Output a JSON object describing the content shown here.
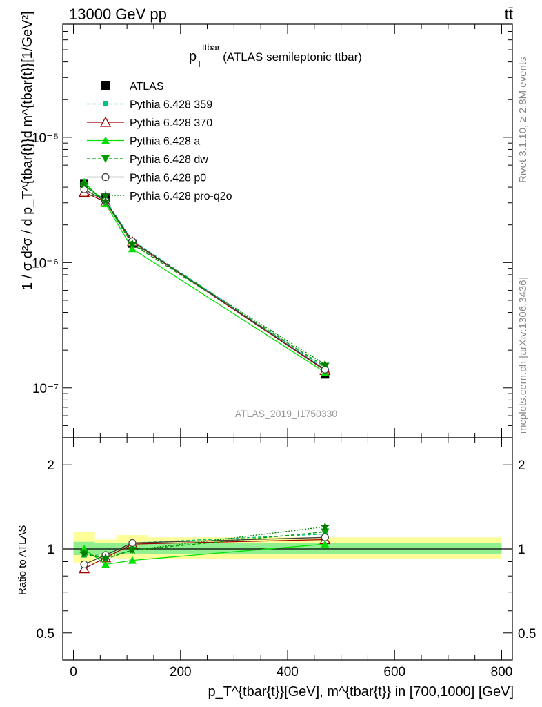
{
  "header": {
    "left": "13000 GeV pp",
    "right": "tt̄"
  },
  "side_labels": {
    "rivet": "Rivet 3.1.10, ≥ 2.8M events",
    "mcplots": "mcplots.cern.ch [arXiv:1306.3436]"
  },
  "colors": {
    "ATLAS": "#000000",
    "Pythia 6.428 359": "#00c080",
    "Pythia 6.428 370": "#a00000",
    "Pythia 6.428 a": "#00e000",
    "Pythia 6.428 dw": "#00a000",
    "Pythia 6.428 p0": "#404040",
    "Pythia 6.428 pro-q2o": "#008000",
    "band_inner": "#90f090",
    "band_outer": "#ffff99"
  },
  "chart_data": [
    {
      "type": "line",
      "title": "p_T^ttbar (ATLAS semileptonic ttbar)",
      "title_main": "p",
      "title_sub": "T",
      "title_sup": "ttbar",
      "title_rest": "(ATLAS semileptonic ttbar)",
      "analysis_id": "ATLAS_2019_I1750330",
      "ylabel": "1 / σ d²σ / d p_T^{tbar{t}}d m^{tbar{t}}[1/GeV²]",
      "yscale": "log",
      "ylim": [
        4e-08,
        8e-05
      ],
      "xlim": [
        -20,
        820
      ],
      "ytick_labels": [
        "10⁻⁷",
        "10⁻⁶",
        "10⁻⁵"
      ],
      "ytick_values": [
        1e-07,
        1e-06,
        1e-05
      ],
      "legend_position": "top-left",
      "x": [
        20,
        60,
        110,
        470
      ],
      "series": [
        {
          "name": "ATLAS",
          "values": [
            4.3e-06,
            3.3e-06,
            1.42e-06,
            1.28e-07
          ],
          "marker": "square-filled",
          "dash": "none"
        },
        {
          "name": "Pythia 6.428 359",
          "values": [
            4.1e-06,
            3.15e-06,
            1.5e-06,
            1.44e-07
          ],
          "marker": "square-small",
          "dash": "dashed"
        },
        {
          "name": "Pythia 6.428 370",
          "values": [
            3.65e-06,
            3.05e-06,
            1.47e-06,
            1.38e-07
          ],
          "marker": "triangle-open",
          "dash": "solid"
        },
        {
          "name": "Pythia 6.428 a",
          "values": [
            4.4e-06,
            2.95e-06,
            1.29e-06,
            1.33e-07
          ],
          "marker": "triangle-filled",
          "dash": "solid"
        },
        {
          "name": "Pythia 6.428 dw",
          "values": [
            4.15e-06,
            3.05e-06,
            1.4e-06,
            1.48e-07
          ],
          "marker": "triangle-down-filled",
          "dash": "dashed"
        },
        {
          "name": "Pythia 6.428 p0",
          "values": [
            3.85e-06,
            3.1e-06,
            1.48e-06,
            1.4e-07
          ],
          "marker": "circle-open",
          "dash": "solid"
        },
        {
          "name": "Pythia 6.428 pro-q2o",
          "values": [
            4.2e-06,
            3.1e-06,
            1.42e-06,
            1.54e-07
          ],
          "marker": "star",
          "dash": "dotted"
        }
      ]
    },
    {
      "type": "line",
      "ylabel": "Ratio to ATLAS",
      "xlabel": "p_T^{tbar{t}}[GeV], m^{tbar{t}} in [700,1000] [GeV]",
      "ylim": [
        0.4,
        2.5
      ],
      "xlim": [
        -20,
        820
      ],
      "yscale": "log",
      "ytick_labels": [
        "0.5",
        "1",
        "2"
      ],
      "ytick_values": [
        0.5,
        1,
        2
      ],
      "xtick_labels": [
        "0",
        "200",
        "400",
        "600",
        "800"
      ],
      "xtick_values": [
        0,
        200,
        400,
        600,
        800
      ],
      "x": [
        20,
        60,
        110,
        470
      ],
      "bands": [
        {
          "xlo": 0,
          "xhi": 40,
          "inner": [
            0.95,
            1.06
          ],
          "outer": [
            0.89,
            1.15
          ]
        },
        {
          "xlo": 40,
          "xhi": 80,
          "inner": [
            0.96,
            1.05
          ],
          "outer": [
            0.93,
            1.08
          ]
        },
        {
          "xlo": 80,
          "xhi": 140,
          "inner": [
            0.96,
            1.05
          ],
          "outer": [
            0.92,
            1.12
          ]
        },
        {
          "xlo": 140,
          "xhi": 800,
          "inner": [
            0.96,
            1.05
          ],
          "outer": [
            0.92,
            1.1
          ]
        }
      ],
      "series": [
        {
          "name": "Pythia 6.428 359",
          "values": [
            0.95,
            0.95,
            1.05,
            1.13
          ]
        },
        {
          "name": "Pythia 6.428 370",
          "values": [
            0.85,
            0.93,
            1.04,
            1.08
          ]
        },
        {
          "name": "Pythia 6.428 a",
          "values": [
            1.0,
            0.88,
            0.91,
            1.04
          ]
        },
        {
          "name": "Pythia 6.428 dw",
          "values": [
            0.96,
            0.92,
            0.99,
            1.15
          ]
        },
        {
          "name": "Pythia 6.428 p0",
          "values": [
            0.88,
            0.95,
            1.05,
            1.1
          ]
        },
        {
          "name": "Pythia 6.428 pro-q2o",
          "values": [
            0.96,
            0.93,
            0.99,
            1.2
          ]
        }
      ]
    }
  ]
}
